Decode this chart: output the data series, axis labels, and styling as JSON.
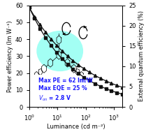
{
  "xlabel": "Luminance (cd m⁻²)",
  "ylabel_left": "Power efficiency (lm W⁻¹)",
  "ylabel_right": "External quantum efficiency (%)",
  "ylim_left": [
    0,
    60
  ],
  "ylim_right": [
    0,
    25
  ],
  "pe_start": 59.0,
  "pe_end": 7.5,
  "eqe_start": 24.5,
  "eqe_end": 4.8,
  "x_min": 1.0,
  "x_max": 2000.0,
  "curve_color": "#111111",
  "annotation_color": "#1a1aff",
  "bg_ellipse_color": "#66ffee",
  "bg_ellipse_alpha": 0.6,
  "marker_size_sq": 3.0,
  "marker_size_tri": 3.2,
  "linewidth": 0.9,
  "yticks_left": [
    0,
    10,
    20,
    30,
    40,
    50,
    60
  ],
  "yticks_right": [
    0,
    5,
    10,
    15,
    20,
    25
  ],
  "xtick_labels": [
    "10$^0$",
    "10$^1$",
    "10$^2$",
    "10$^3$"
  ]
}
